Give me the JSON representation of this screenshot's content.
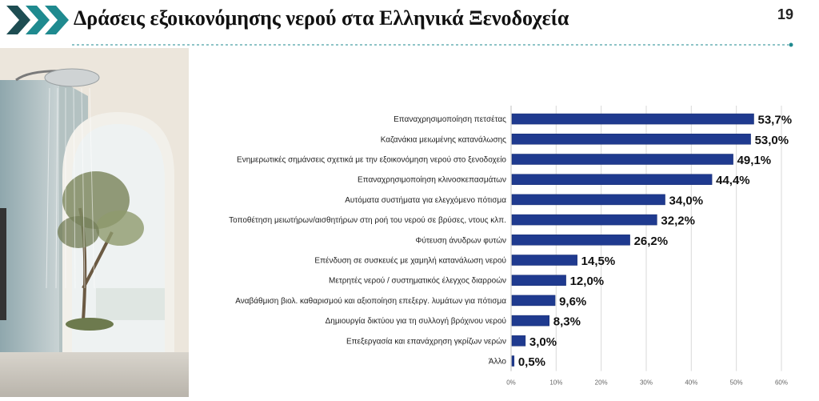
{
  "slide": {
    "title": "Δράσεις εξοικονόμησης νερού στα Ελληνικά Ξενοδοχεία",
    "page_number": "19"
  },
  "colors": {
    "bar": "#1f3a8f",
    "bar_dark": "#162c70",
    "accent_teal": "#1f8a8f",
    "chevron_dark": "#1e4d52",
    "grid": "#d9d9d9"
  },
  "photo": {
    "icon": "shower-bathroom-photo"
  },
  "chart_data": {
    "type": "bar",
    "orientation": "horizontal",
    "categories": [
      "Επαναχρησιμοποίηση πετσέτας",
      "Καζανάκια μειωμένης κατανάλωσης",
      "Ενημερωτικές σημάνσεις σχετικά με την εξοικονόμηση νερού στο ξενοδοχείο",
      "Επαναχρησιμοποίηση κλινοσκεπασμάτων",
      "Αυτόματα συστήματα για ελεγχόμενο πότισμα",
      "Τοποθέτηση μειωτήρων/αισθητήρων στη ροή του νερού σε βρύσες, ντους κλπ.",
      "Φύτευση άνυδρων φυτών",
      "Επένδυση σε συσκευές με χαμηλή κατανάλωση νερού",
      "Μετρητές νερού / συστηματικός έλεγχος διαρροών",
      "Αναβάθμιση βιολ. καθαρισμού και αξιοποίηση επεξεργ. λυμάτων για πότισμα",
      "Δημιουργία δικτύου για τη συλλογή βρόχινου νερού",
      "Επεξεργασία και επανάχρηση γκρίζων νερών",
      "Άλλο"
    ],
    "values": [
      53.7,
      53.0,
      49.1,
      44.4,
      34.0,
      32.2,
      26.2,
      14.5,
      12.0,
      9.6,
      8.3,
      3.0,
      0.5
    ],
    "value_labels": [
      "53,7%",
      "53,0%",
      "49,1%",
      "44,4%",
      "34,0%",
      "32,2%",
      "26,2%",
      "14,5%",
      "12,0%",
      "9,6%",
      "8,3%",
      "3,0%",
      "0,5%"
    ],
    "xlim": [
      0,
      60
    ],
    "xticks": [
      "0%",
      "10%",
      "20%",
      "30%",
      "40%",
      "50%",
      "60%"
    ],
    "grid": true
  }
}
